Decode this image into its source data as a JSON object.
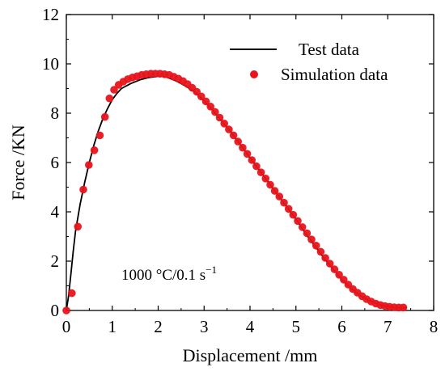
{
  "chart_data": {
    "type": "line",
    "xlabel": "Displacement /mm",
    "ylabel": "Force /KN",
    "xlim": [
      0,
      8
    ],
    "ylim": [
      0,
      12
    ],
    "x_ticks": [
      0,
      1,
      2,
      3,
      4,
      5,
      6,
      7,
      8
    ],
    "y_ticks": [
      0,
      2,
      4,
      6,
      8,
      10,
      12
    ],
    "grid": false,
    "legend_position": "top-right",
    "annotation": "1000 °C/0.1 s",
    "annotation_superscript": "−1",
    "series": [
      {
        "name": "Test data",
        "style": "line",
        "color": "#000000",
        "x": [
          0.0,
          0.05,
          0.1,
          0.15,
          0.2,
          0.3,
          0.4,
          0.5,
          0.6,
          0.7,
          0.8,
          0.9,
          1.0,
          1.1,
          1.2,
          1.4,
          1.6,
          1.8,
          2.0,
          2.1,
          2.2,
          2.4,
          2.6,
          2.8,
          3.0,
          3.2,
          3.4,
          3.6,
          3.8,
          4.0,
          4.2,
          4.4,
          4.6,
          4.8,
          5.0,
          5.2,
          5.4,
          5.6,
          5.8,
          6.0,
          6.2,
          6.4,
          6.6,
          6.8,
          7.0,
          7.2,
          7.4
        ],
        "y": [
          0.0,
          0.6,
          1.5,
          2.4,
          3.2,
          4.3,
          5.2,
          6.0,
          6.7,
          7.3,
          7.8,
          8.2,
          8.55,
          8.8,
          9.0,
          9.2,
          9.35,
          9.45,
          9.5,
          9.5,
          9.45,
          9.3,
          9.1,
          8.85,
          8.5,
          8.1,
          7.65,
          7.2,
          6.7,
          6.2,
          5.7,
          5.2,
          4.7,
          4.2,
          3.7,
          3.15,
          2.65,
          2.15,
          1.7,
          1.25,
          0.9,
          0.6,
          0.4,
          0.25,
          0.15,
          0.1,
          0.1
        ]
      },
      {
        "name": "Simulation data",
        "style": "scatter",
        "color": "#e8141b",
        "x": [
          0.0,
          0.12,
          0.25,
          0.37,
          0.49,
          0.61,
          0.73,
          0.84,
          0.94,
          1.04,
          1.14,
          1.24,
          1.34,
          1.44,
          1.54,
          1.64,
          1.74,
          1.84,
          1.94,
          2.04,
          2.14,
          2.24,
          2.34,
          2.44,
          2.54,
          2.64,
          2.74,
          2.84,
          2.94,
          3.04,
          3.14,
          3.24,
          3.34,
          3.44,
          3.54,
          3.64,
          3.74,
          3.84,
          3.94,
          4.04,
          4.14,
          4.24,
          4.34,
          4.44,
          4.54,
          4.64,
          4.74,
          4.84,
          4.94,
          5.04,
          5.14,
          5.24,
          5.34,
          5.44,
          5.54,
          5.64,
          5.74,
          5.84,
          5.94,
          6.04,
          6.14,
          6.24,
          6.34,
          6.44,
          6.54,
          6.64,
          6.74,
          6.84,
          6.94,
          7.04,
          7.14,
          7.24,
          7.34
        ],
        "y": [
          0.0,
          0.7,
          3.4,
          4.9,
          5.9,
          6.5,
          7.1,
          7.85,
          8.6,
          8.95,
          9.15,
          9.28,
          9.38,
          9.45,
          9.5,
          9.55,
          9.58,
          9.6,
          9.6,
          9.6,
          9.58,
          9.55,
          9.48,
          9.4,
          9.3,
          9.18,
          9.03,
          8.87,
          8.68,
          8.48,
          8.27,
          8.05,
          7.82,
          7.58,
          7.34,
          7.1,
          6.85,
          6.6,
          6.35,
          6.1,
          5.85,
          5.6,
          5.35,
          5.1,
          4.85,
          4.62,
          4.37,
          4.12,
          3.88,
          3.63,
          3.38,
          3.13,
          2.88,
          2.63,
          2.38,
          2.13,
          1.9,
          1.67,
          1.45,
          1.25,
          1.05,
          0.87,
          0.72,
          0.58,
          0.46,
          0.36,
          0.28,
          0.22,
          0.18,
          0.15,
          0.13,
          0.12,
          0.12
        ]
      }
    ]
  }
}
